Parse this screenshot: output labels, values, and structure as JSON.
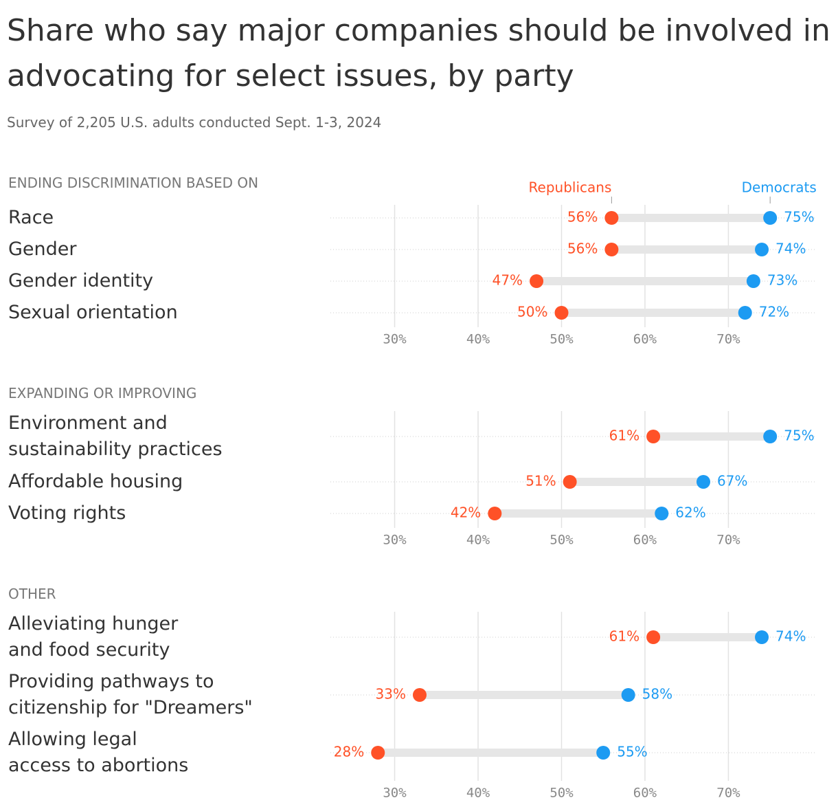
{
  "chart_data": [
    {
      "type": "dumbbell",
      "title": "Share who say major companies should be involved in advocating for select issues, by party",
      "subtitle": "Survey of 2,205 U.S. adults conducted Sept. 1-3, 2024",
      "section": "ENDING DISCRIMINATION BASED ON",
      "categories": [
        "Race",
        "Gender",
        "Gender identity",
        "Sexual orientation"
      ],
      "series": [
        {
          "name": "Republicans",
          "color": "#ff5127",
          "values": [
            56,
            56,
            47,
            50
          ],
          "value_labels": [
            "56%",
            "56%",
            "47%",
            "50%"
          ]
        },
        {
          "name": "Democrats",
          "color": "#1d9bf2",
          "values": [
            75,
            74,
            73,
            72
          ],
          "value_labels": [
            "75%",
            "74%",
            "73%",
            "72%"
          ]
        }
      ],
      "xlim": [
        22.3,
        80.5
      ],
      "xticks": [
        {
          "value": 30,
          "label": "30%"
        },
        {
          "value": 40,
          "label": "40%"
        },
        {
          "value": 50,
          "label": "50%"
        },
        {
          "value": 60,
          "label": "60%"
        },
        {
          "value": 70,
          "label": "70%"
        }
      ],
      "grid": true
    },
    {
      "type": "dumbbell",
      "section": "EXPANDING OR IMPROVING",
      "categories": [
        "Environment and\nsustainability practices",
        "Affordable housing",
        "Voting rights"
      ],
      "series": [
        {
          "color": "#ff5127",
          "values": [
            61,
            51,
            42
          ],
          "value_labels": [
            "61%",
            "51%",
            "42%"
          ]
        },
        {
          "color": "#1d9bf2",
          "values": [
            75,
            67,
            62
          ],
          "value_labels": [
            "75%",
            "67%",
            "62%"
          ]
        }
      ],
      "xlim": [
        22.3,
        80.5
      ],
      "xticks": [
        {
          "value": 30,
          "label": "30%"
        },
        {
          "value": 40,
          "label": "40%"
        },
        {
          "value": 50,
          "label": "50%"
        },
        {
          "value": 60,
          "label": "60%"
        },
        {
          "value": 70,
          "label": "70%"
        }
      ],
      "grid": true
    },
    {
      "type": "dumbbell",
      "section": "OTHER",
      "categories": [
        "Alleviating hunger\nand food security",
        "Providing pathways to\ncitizenship for \"Dreamers\"",
        "Allowing legal\naccess to abortions"
      ],
      "series": [
        {
          "color": "#ff5127",
          "values": [
            61,
            33,
            28
          ],
          "value_labels": [
            "61%",
            "33%",
            "28%"
          ]
        },
        {
          "color": "#1d9bf2",
          "values": [
            74,
            58,
            55
          ],
          "value_labels": [
            "74%",
            "58%",
            "55%"
          ]
        }
      ],
      "xlim": [
        22.3,
        80.5
      ],
      "xticks": [
        {
          "value": 30,
          "label": "30%"
        },
        {
          "value": 40,
          "label": "40%"
        },
        {
          "value": 50,
          "label": "50%"
        },
        {
          "value": 60,
          "label": "60%"
        },
        {
          "value": 70,
          "label": "70%"
        }
      ],
      "grid": true
    }
  ]
}
